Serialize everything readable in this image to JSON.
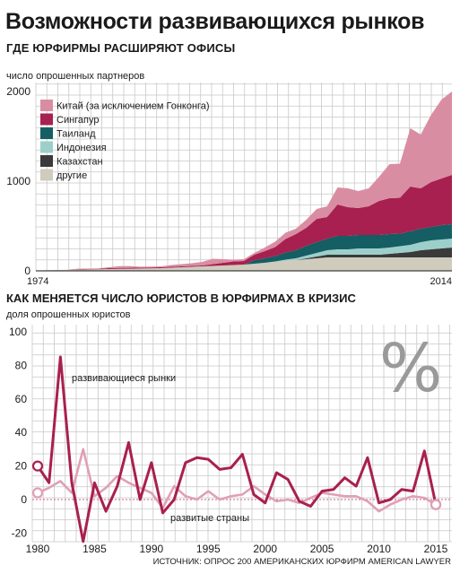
{
  "title": "Возможности развивающихся рынков",
  "subtitle": "ГДЕ ЮРФИРМЫ РАСШИРЯЮТ ОФИСЫ",
  "source": "ИСТОЧНИК: ОПРОС 200 АМЕРИКАНСКИХ ЮРФИРМ AMERICAN LAWYER",
  "colors": {
    "china": "#d98da3",
    "singapore": "#a8204f",
    "thailand": "#155e63",
    "indonesia": "#9dcfca",
    "kazakhstan": "#3a3a3a",
    "other": "#cfcbbd",
    "grid": "#c8c8c8",
    "emerging_line": "#a8204f",
    "developed_line": "#e0a0b4",
    "zero_line": "#d06080"
  },
  "chart_data": [
    {
      "type": "area",
      "stacked": true,
      "title": "ГДЕ ЮРФИРМЫ РАСШИРЯЮТ ОФИСЫ",
      "ylabel": "число опрошенных партнеров",
      "xlim": [
        1974,
        2014
      ],
      "ylim": [
        0,
        2100
      ],
      "x_tick_labels": [
        "1974",
        "2014"
      ],
      "y_ticks": [
        0,
        1000,
        2000
      ],
      "grid": true,
      "legend_position": "top-left",
      "x": [
        1974,
        1975,
        1976,
        1977,
        1978,
        1979,
        1980,
        1981,
        1982,
        1983,
        1984,
        1985,
        1986,
        1987,
        1988,
        1989,
        1990,
        1991,
        1992,
        1993,
        1994,
        1995,
        1996,
        1997,
        1998,
        1999,
        2000,
        2001,
        2002,
        2003,
        2004,
        2005,
        2006,
        2007,
        2008,
        2009,
        2010,
        2011,
        2012,
        2013,
        2014
      ],
      "series": [
        {
          "name": "другие",
          "color_key": "other",
          "values": [
            5,
            8,
            10,
            12,
            14,
            16,
            18,
            20,
            22,
            24,
            26,
            28,
            30,
            35,
            40,
            45,
            50,
            55,
            60,
            65,
            70,
            80,
            90,
            100,
            110,
            120,
            130,
            140,
            150,
            150,
            150,
            150,
            150,
            150,
            150,
            150,
            150,
            150,
            150,
            150,
            150
          ]
        },
        {
          "name": "Казахстан",
          "color_key": "kazakhstan",
          "values": [
            0,
            0,
            0,
            0,
            0,
            0,
            0,
            0,
            0,
            0,
            0,
            0,
            0,
            0,
            0,
            0,
            0,
            0,
            0,
            0,
            0,
            0,
            0,
            0,
            0,
            0,
            10,
            20,
            30,
            30,
            30,
            30,
            30,
            30,
            40,
            50,
            60,
            80,
            90,
            100,
            110
          ]
        },
        {
          "name": "Индонезия",
          "color_key": "indonesia",
          "values": [
            0,
            0,
            0,
            0,
            0,
            0,
            0,
            0,
            0,
            0,
            0,
            0,
            0,
            0,
            0,
            0,
            0,
            0,
            0,
            0,
            0,
            0,
            0,
            5,
            15,
            20,
            30,
            40,
            50,
            60,
            60,
            70,
            70,
            70,
            70,
            75,
            80,
            90,
            100,
            100,
            100
          ]
        },
        {
          "name": "Таиланд",
          "color_key": "thailand",
          "values": [
            0,
            0,
            0,
            0,
            0,
            0,
            0,
            0,
            0,
            0,
            0,
            0,
            0,
            0,
            0,
            0,
            0,
            0,
            0,
            0,
            0,
            40,
            50,
            60,
            80,
            90,
            110,
            120,
            130,
            150,
            150,
            150,
            150,
            150,
            150,
            140,
            150,
            150,
            150,
            160,
            160
          ]
        },
        {
          "name": "Сингапур",
          "color_key": "singapore",
          "values": [
            0,
            0,
            0,
            0,
            5,
            5,
            5,
            10,
            10,
            10,
            10,
            10,
            10,
            10,
            10,
            10,
            10,
            20,
            30,
            40,
            40,
            60,
            80,
            100,
            150,
            180,
            200,
            260,
            240,
            350,
            320,
            300,
            320,
            380,
            400,
            400,
            500,
            450,
            500,
            520,
            550
          ]
        },
        {
          "name": "Китай (за исключением Гонконга)",
          "color_key": "china",
          "values": [
            0,
            0,
            0,
            0,
            5,
            5,
            5,
            10,
            20,
            20,
            10,
            10,
            10,
            20,
            25,
            30,
            40,
            60,
            40,
            20,
            20,
            20,
            40,
            60,
            70,
            60,
            90,
            110,
            120,
            190,
            210,
            190,
            200,
            270,
            380,
            380,
            650,
            600,
            750,
            880,
            930
          ]
        }
      ]
    },
    {
      "type": "line",
      "title": "КАК МЕНЯЕТСЯ ЧИСЛО ЮРИСТОВ В ЮРФИРМАХ В КРИЗИС",
      "ylabel": "доля опрошенных юристов",
      "xlim": [
        1980,
        2015
      ],
      "ylim": [
        -20,
        100
      ],
      "x_ticks": [
        1980,
        1985,
        1990,
        1995,
        2000,
        2005,
        2010,
        2015
      ],
      "y_ticks": [
        -20,
        0,
        20,
        40,
        60,
        80,
        100
      ],
      "grid": true,
      "symbol": "%",
      "x": [
        1980,
        1981,
        1982,
        1983,
        1984,
        1985,
        1986,
        1987,
        1988,
        1989,
        1990,
        1991,
        1992,
        1993,
        1994,
        1995,
        1996,
        1997,
        1998,
        1999,
        2000,
        2001,
        2002,
        2003,
        2004,
        2005,
        2006,
        2007,
        2008,
        2009,
        2010,
        2011,
        2012,
        2013,
        2014,
        2015
      ],
      "series": [
        {
          "name": "развивающиеся рынки",
          "color_key": "emerging_line",
          "values": [
            20,
            10,
            85,
            10,
            -25,
            10,
            -7,
            8,
            34,
            0,
            22,
            -8,
            0,
            22,
            25,
            24,
            18,
            19,
            27,
            3,
            -2,
            16,
            12,
            -1,
            -4,
            5,
            6,
            13,
            8,
            25,
            -2,
            0,
            6,
            5,
            29,
            -3
          ]
        },
        {
          "name": "развитые страны",
          "color_key": "developed_line",
          "values": [
            4,
            7,
            11,
            4,
            30,
            2,
            7,
            14,
            10,
            7,
            4,
            -5,
            8,
            2,
            0,
            5,
            0,
            2,
            3,
            8,
            3,
            -1,
            0,
            -2,
            1,
            4,
            3,
            2,
            2,
            -1,
            -7,
            -3,
            0,
            2,
            1,
            -3
          ]
        }
      ]
    }
  ]
}
